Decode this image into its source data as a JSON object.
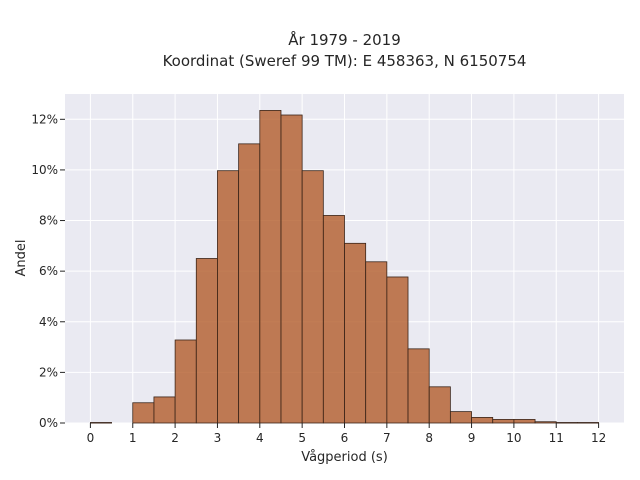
{
  "chart_data": {
    "type": "bar",
    "title_line1": "År 1979 - 2019",
    "title_line2": "Koordinat (Sweref 99 TM): E 458363, N 6150754",
    "xlabel": "Vågperiod (s)",
    "ylabel": "Andel",
    "xlim": [
      -0.6,
      12.6
    ],
    "ylim": [
      0,
      13.0
    ],
    "grid": true,
    "xticks": [
      "0",
      "1",
      "2",
      "3",
      "4",
      "5",
      "6",
      "7",
      "8",
      "9",
      "10",
      "11",
      "12"
    ],
    "yticks": [
      "0%",
      "2%",
      "4%",
      "6%",
      "8%",
      "10%",
      "12%"
    ],
    "bin_width": 0.5,
    "bins": [
      {
        "start": 0.0,
        "value": 0.02
      },
      {
        "start": 0.5,
        "value": 0.0
      },
      {
        "start": 1.0,
        "value": 0.8
      },
      {
        "start": 1.5,
        "value": 1.03
      },
      {
        "start": 2.0,
        "value": 3.28
      },
      {
        "start": 2.5,
        "value": 6.5
      },
      {
        "start": 3.0,
        "value": 9.97
      },
      {
        "start": 3.5,
        "value": 11.03
      },
      {
        "start": 4.0,
        "value": 12.35
      },
      {
        "start": 4.5,
        "value": 12.17
      },
      {
        "start": 5.0,
        "value": 9.97
      },
      {
        "start": 5.5,
        "value": 8.2
      },
      {
        "start": 6.0,
        "value": 7.1
      },
      {
        "start": 6.5,
        "value": 6.37
      },
      {
        "start": 7.0,
        "value": 5.77
      },
      {
        "start": 7.5,
        "value": 2.93
      },
      {
        "start": 8.0,
        "value": 1.43
      },
      {
        "start": 8.5,
        "value": 0.45
      },
      {
        "start": 9.0,
        "value": 0.22
      },
      {
        "start": 9.5,
        "value": 0.14
      },
      {
        "start": 10.0,
        "value": 0.14
      },
      {
        "start": 10.5,
        "value": 0.05
      },
      {
        "start": 11.0,
        "value": 0.02
      },
      {
        "start": 11.5,
        "value": 0.02
      }
    ],
    "colors": {
      "bar": "#b5602f",
      "edge": "#3a2418",
      "plot_bg": "#eaeaf2",
      "grid": "#ffffff"
    }
  }
}
